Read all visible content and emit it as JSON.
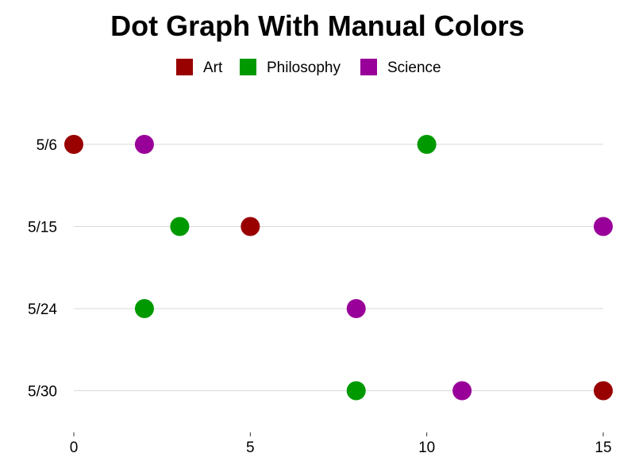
{
  "chart_data": {
    "type": "scatter",
    "title": "Dot Graph With Manual Colors",
    "categories": [
      "5/6",
      "5/15",
      "5/24",
      "5/30"
    ],
    "xlim": [
      0,
      15
    ],
    "x_ticks": [
      "0",
      "5",
      "10",
      "15"
    ],
    "x_tick_values": [
      0,
      5,
      10,
      15
    ],
    "grid": "horizontal",
    "legend_position": "top",
    "series": [
      {
        "name": "Art",
        "color": "#990000",
        "values": [
          0,
          5,
          null,
          15
        ]
      },
      {
        "name": "Philosophy",
        "color": "#009900",
        "values": [
          10,
          3,
          2,
          8
        ]
      },
      {
        "name": "Science",
        "color": "#990099",
        "values": [
          2,
          15,
          8,
          11
        ]
      }
    ]
  }
}
